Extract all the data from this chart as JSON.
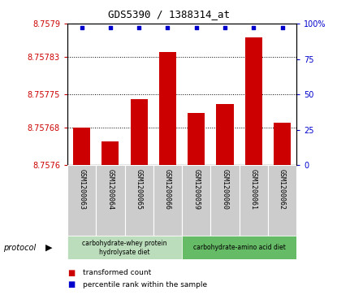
{
  "title": "GDS5390 / 1388314_at",
  "samples": [
    "GSM1200063",
    "GSM1200064",
    "GSM1200065",
    "GSM1200066",
    "GSM1200059",
    "GSM1200060",
    "GSM1200061",
    "GSM1200062"
  ],
  "bar_values": [
    8.75768,
    8.75765,
    8.75774,
    8.75784,
    8.75771,
    8.75773,
    8.75787,
    8.75769
  ],
  "percentile_values": [
    97,
    97,
    97,
    97,
    97,
    97,
    97,
    97
  ],
  "ylim_left": [
    8.7576,
    8.7579
  ],
  "ylim_right": [
    0,
    100
  ],
  "yticks_left": [
    8.7576,
    8.75768,
    8.75775,
    8.75783,
    8.7579
  ],
  "ytick_labels_left": [
    "8.7576",
    "8.75768",
    "8.75775",
    "8.75783",
    "8.7579"
  ],
  "yticks_right": [
    0,
    25,
    50,
    75,
    100
  ],
  "ytick_labels_right": [
    "0",
    "25",
    "50",
    "75",
    "100%"
  ],
  "bar_color": "#cc0000",
  "scatter_color": "#0000cc",
  "group1_label": "carbohydrate-whey protein\nhydrolysate diet",
  "group2_label": "carbohydrate-amino acid diet",
  "group1_color": "#bbddbb",
  "group2_color": "#66bb66",
  "group1_indices": [
    0,
    1,
    2,
    3
  ],
  "group2_indices": [
    4,
    5,
    6,
    7
  ],
  "legend_bar_label": "transformed count",
  "legend_scatter_label": "percentile rank within the sample",
  "protocol_label": "protocol",
  "background_color": "#cccccc",
  "plot_bg_color": "#ffffff",
  "grid_color": "#000000",
  "title_fontsize": 9,
  "tick_fontsize": 7,
  "label_fontsize": 7
}
